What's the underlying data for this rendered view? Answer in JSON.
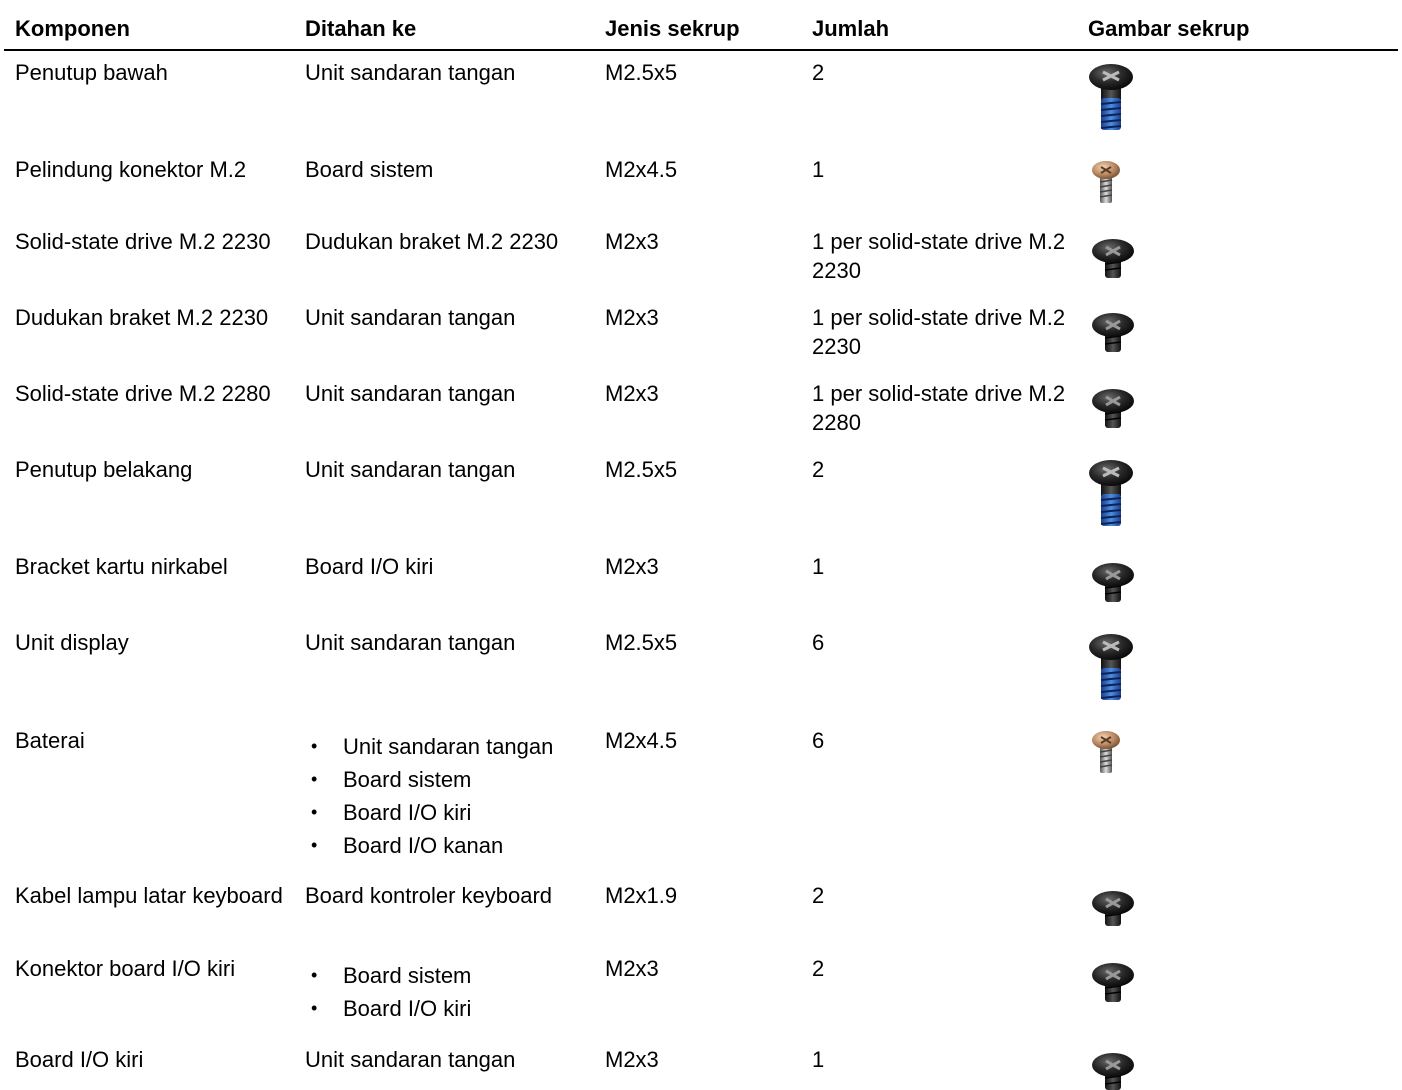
{
  "table": {
    "headers": [
      "Komponen",
      "Ditahan ke",
      "Jenis sekrup",
      "Jumlah",
      "Gambar sekrup"
    ],
    "rows": [
      {
        "komponen": "Penutup bawah",
        "ditahan": "Unit sandaran tangan",
        "jenis": "M2.5x5",
        "jumlah": "2",
        "icon": "long-black-blue-screw-icon"
      },
      {
        "komponen": "Pelindung konektor M.2",
        "ditahan": "Board sistem",
        "jenis": "M2x4.5",
        "jumlah": "1",
        "icon": "bronze-screw-icon"
      },
      {
        "komponen": "Solid-state drive M.2 2230",
        "ditahan": "Dudukan braket M.2 2230",
        "jenis": "M2x3",
        "jumlah": "1 per solid-state drive M.2 2230",
        "icon": "short-black-screw-icon"
      },
      {
        "komponen": "Dudukan braket M.2 2230",
        "ditahan": "Unit sandaran tangan",
        "jenis": "M2x3",
        "jumlah": "1 per solid-state drive M.2 2230",
        "icon": "short-black-screw-icon"
      },
      {
        "komponen": "Solid-state drive M.2 2280",
        "ditahan": "Unit sandaran tangan",
        "jenis": "M2x3",
        "jumlah": "1 per solid-state drive M.2 2280",
        "icon": "short-black-screw-icon"
      },
      {
        "komponen": "Penutup belakang",
        "ditahan": "Unit sandaran tangan",
        "jenis": "M2.5x5",
        "jumlah": "2",
        "icon": "long-black-blue-screw-icon"
      },
      {
        "komponen": "Bracket kartu nirkabel",
        "ditahan": "Board I/O kiri",
        "jenis": "M2x3",
        "jumlah": "1",
        "icon": "short-black-screw-icon"
      },
      {
        "komponen": "Unit display",
        "ditahan": "Unit sandaran tangan",
        "jenis": "M2.5x5",
        "jumlah": "6",
        "icon": "long-black-blue-screw-icon"
      },
      {
        "komponen": "Baterai",
        "ditahan_list": [
          "Unit sandaran tangan",
          "Board sistem",
          "Board I/O kiri",
          "Board I/O kanan"
        ],
        "jenis": "M2x4.5",
        "jumlah": "6",
        "icon": "bronze-screw-icon"
      },
      {
        "komponen": "Kabel lampu latar keyboard",
        "ditahan": "Board kontroler keyboard",
        "jenis": "M2x1.9",
        "jumlah": "2",
        "icon": "short-black-screw-icon"
      },
      {
        "komponen": "Konektor board I/O kiri",
        "ditahan_list": [
          "Board sistem",
          "Board I/O kiri"
        ],
        "jenis": "M2x3",
        "jumlah": "2",
        "icon": "short-black-screw-icon"
      },
      {
        "komponen": "Board I/O kiri",
        "ditahan": "Unit sandaran tangan",
        "jenis": "M2x3",
        "jumlah": "1",
        "icon": "short-black-screw-icon"
      }
    ]
  }
}
